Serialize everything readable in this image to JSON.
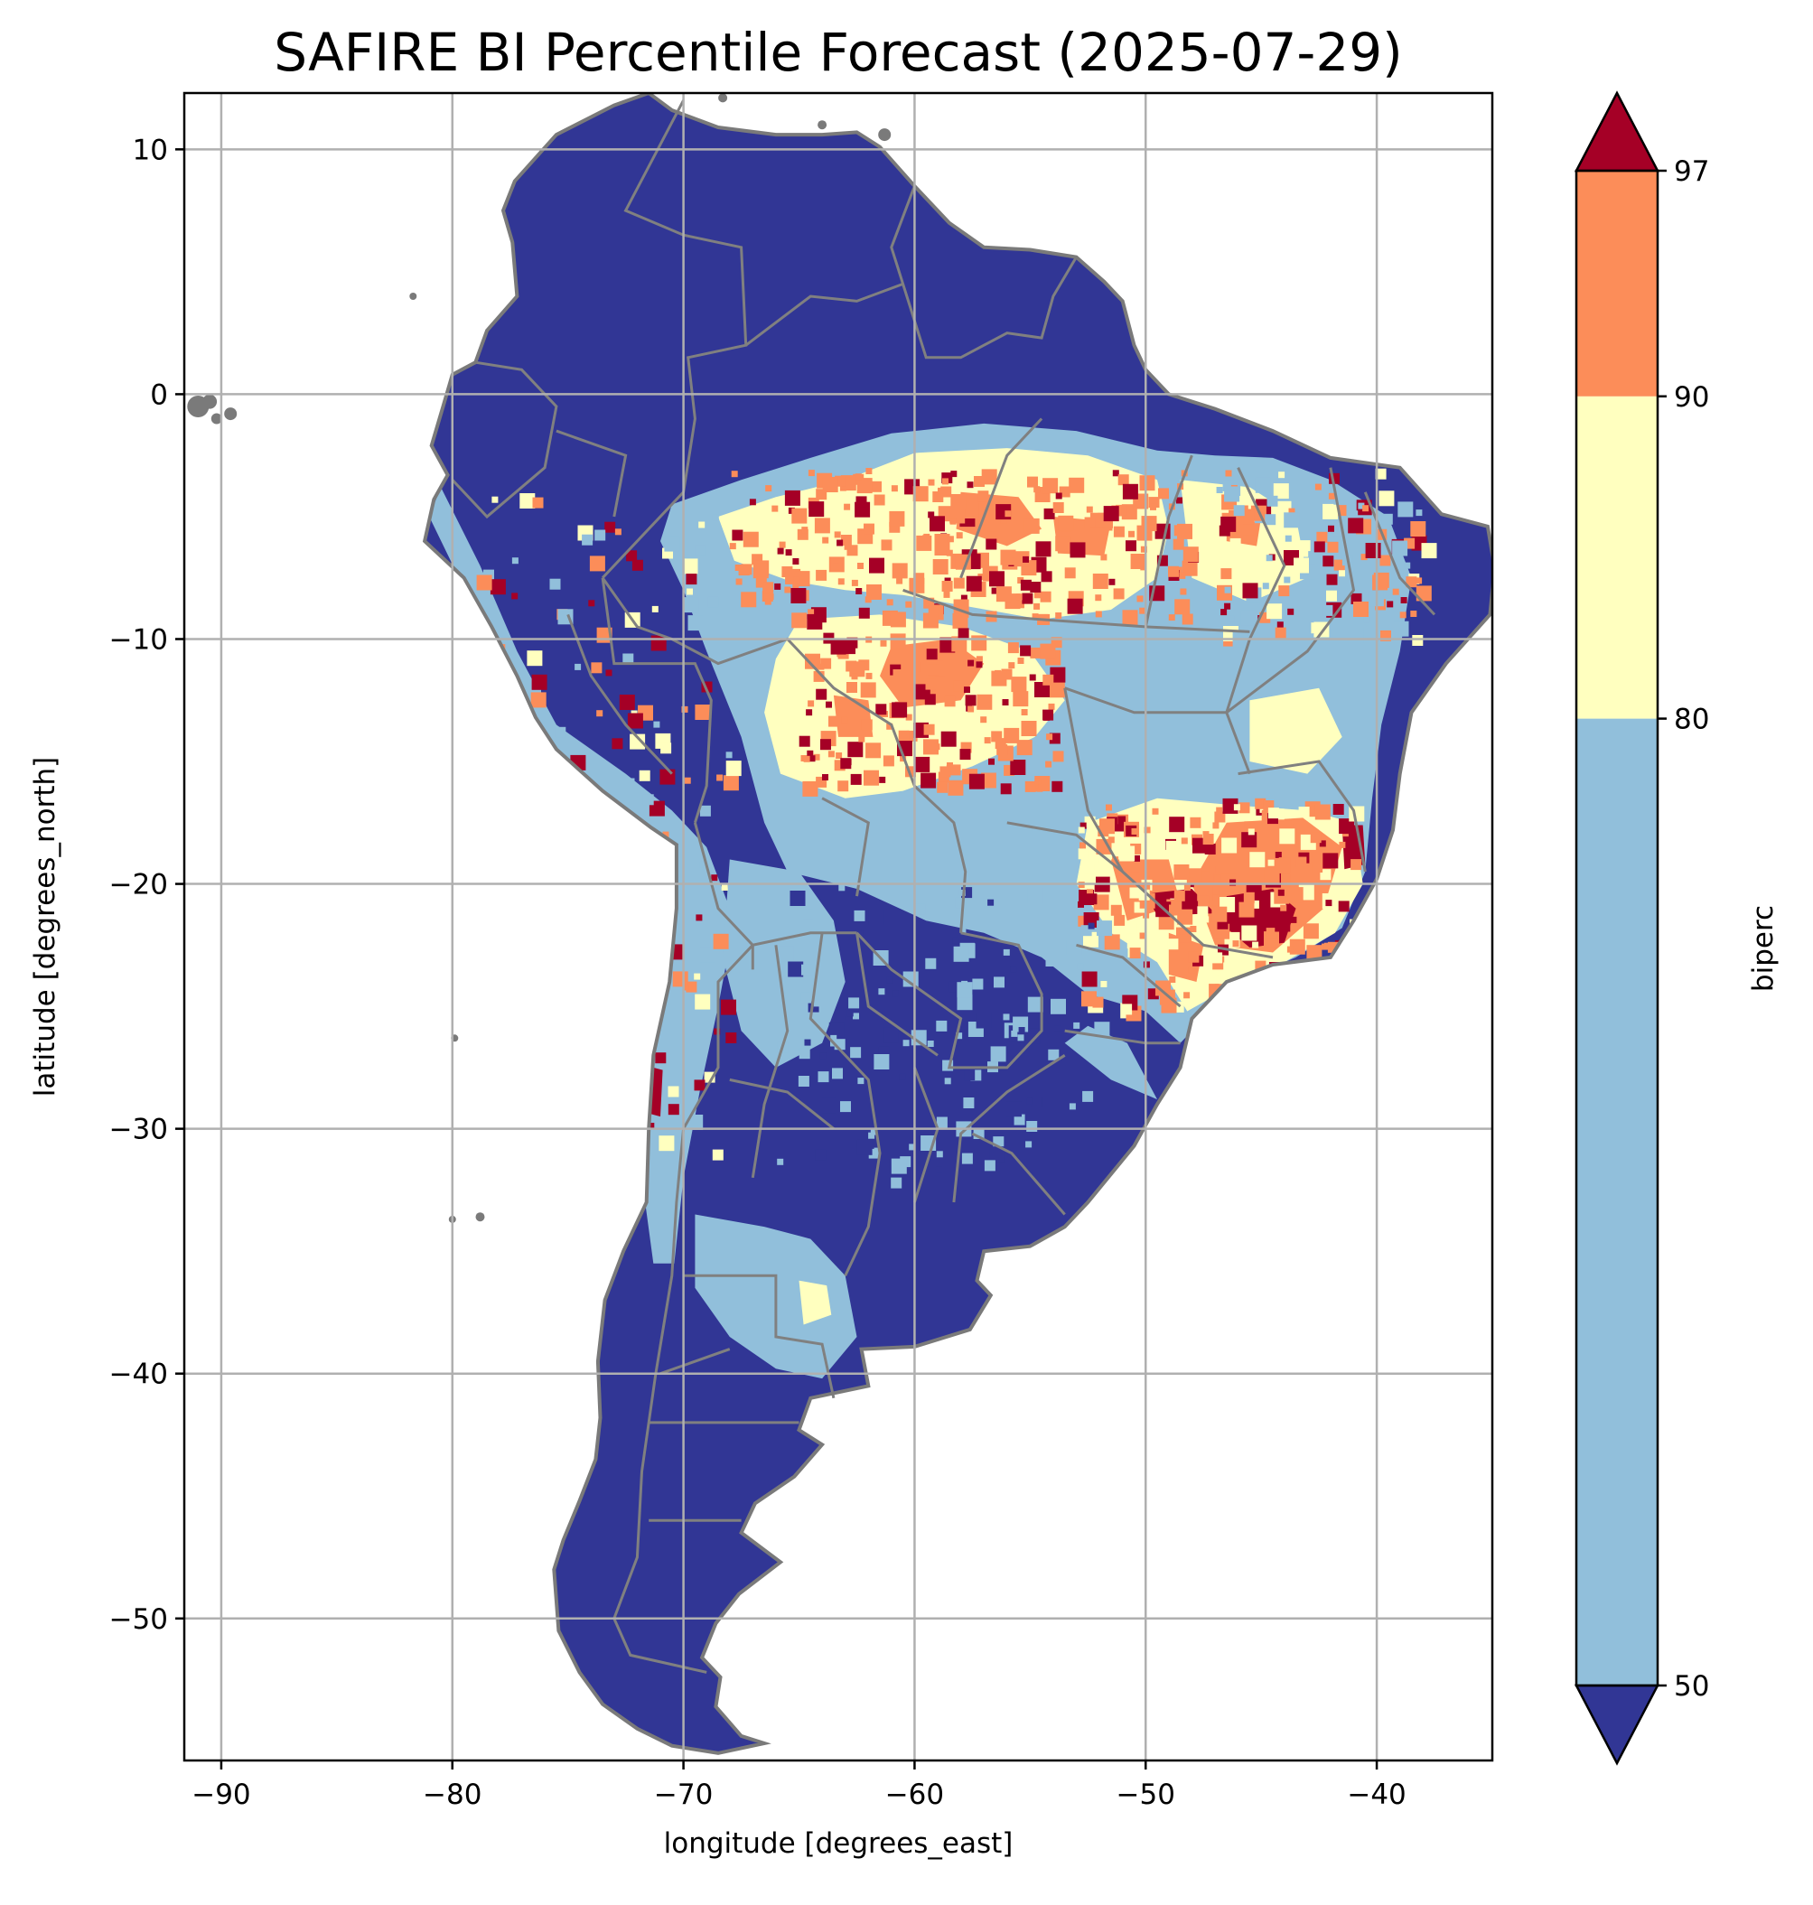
{
  "chart_data": {
    "type": "heatmap",
    "title": "SAFIRE BI Percentile Forecast (2025-07-29)",
    "xlabel": "longitude [degrees_east]",
    "ylabel": "latitude [degrees_north]",
    "xlim": [
      -91.6,
      -35.0
    ],
    "ylim": [
      -55.8,
      12.3
    ],
    "x_ticks": [
      -90,
      -80,
      -70,
      -60,
      -50,
      -40
    ],
    "x_tick_labels": [
      "−90",
      "−80",
      "−70",
      "−60",
      "−50",
      "−40"
    ],
    "y_ticks": [
      10,
      0,
      -10,
      -20,
      -30,
      -40,
      -50
    ],
    "y_tick_labels": [
      "10",
      "0",
      "−10",
      "−20",
      "−30",
      "−40",
      "−50"
    ],
    "grid": true,
    "region": "South America",
    "variable": "biperc",
    "colorbar": {
      "label": "biperc",
      "ticks": [
        50,
        80,
        90,
        97
      ],
      "tick_labels": [
        "50",
        "80",
        "90",
        "97"
      ],
      "extend": "both",
      "bins": [
        {
          "range": "<50",
          "color": "#313695"
        },
        {
          "range": "50-80",
          "color": "#91bfdb"
        },
        {
          "range": "80-90",
          "color": "#ffffbf"
        },
        {
          "range": "90-97",
          "color": "#fc8d59"
        },
        {
          "range": ">97",
          "color": "#a50026"
        }
      ]
    },
    "colors": {
      "land_below_50": "#313695",
      "pct_50_80": "#91bfdb",
      "pct_80_90": "#ffffbf",
      "pct_90_97": "#fc8d59",
      "pct_above_97": "#a50026",
      "borders": "#808080",
      "grid": "#b0b0b0"
    }
  }
}
